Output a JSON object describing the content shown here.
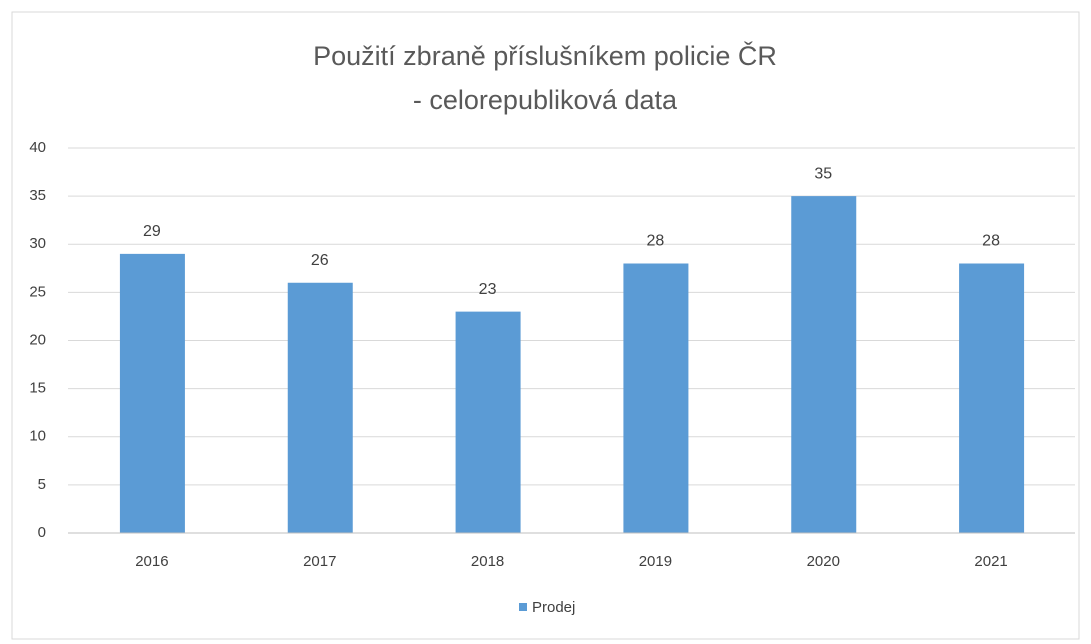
{
  "chart_data": {
    "type": "bar",
    "title": [
      "Použití zbraně příslušníkem policie ČR",
      "- celorepubliková data"
    ],
    "categories": [
      "2016",
      "2017",
      "2018",
      "2019",
      "2020",
      "2021"
    ],
    "series": [
      {
        "name": "Prodej",
        "color": "#5b9bd5",
        "values": [
          29,
          26,
          23,
          28,
          35,
          28
        ]
      }
    ],
    "ylim": [
      0,
      40
    ],
    "yticks": [
      0,
      5,
      10,
      15,
      20,
      25,
      30,
      35,
      40
    ],
    "grid": true,
    "legend": "bottom"
  }
}
